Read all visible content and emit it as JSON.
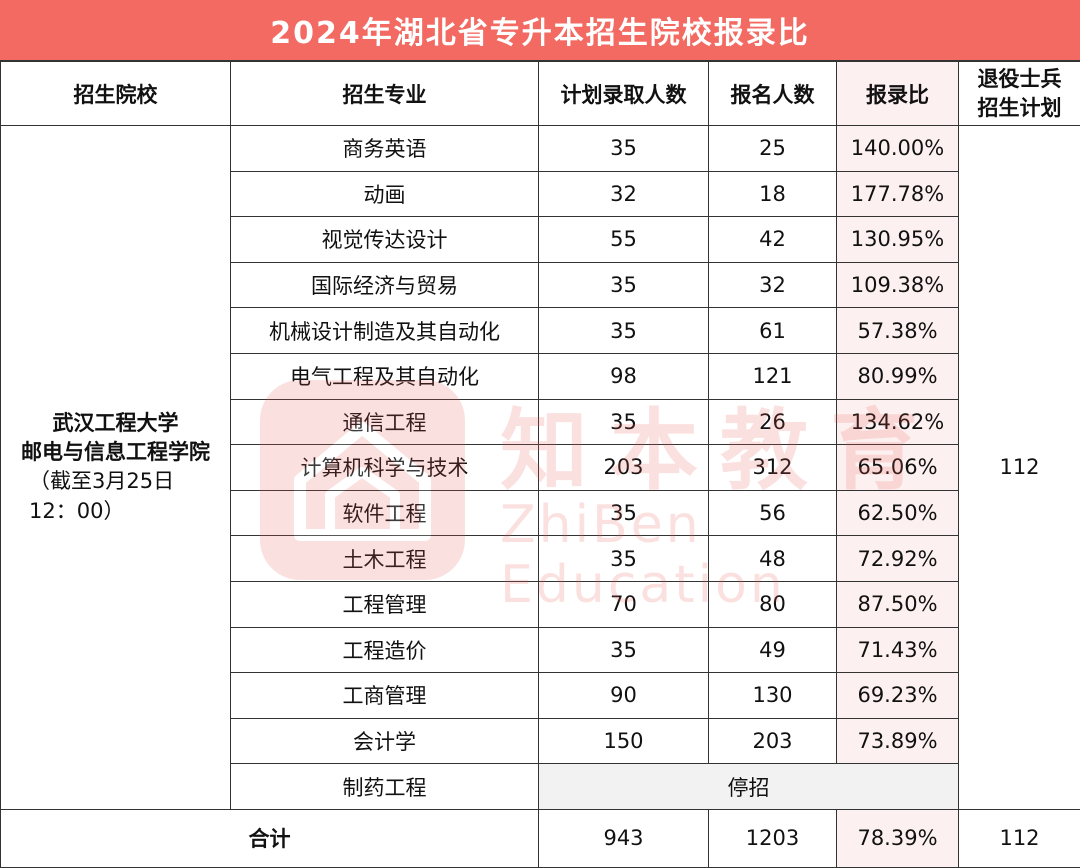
{
  "title": "2024年湖北省专升本招生院校报录比",
  "headers": {
    "school": "招生院校",
    "major": "招生专业",
    "plan": "计划录取人数",
    "applicants": "报名人数",
    "ratio": "报录比",
    "veteran_line1": "退役士兵",
    "veteran_line2": "招生计划"
  },
  "school": {
    "line1": "武汉工程大学",
    "line2": "邮电与信息工程学院",
    "line3": "（截至3月25日",
    "line4": "12：00）"
  },
  "veteran_plan": "112",
  "rows": [
    {
      "major": "商务英语",
      "plan": "35",
      "applicants": "25",
      "ratio": "140.00%"
    },
    {
      "major": "动画",
      "plan": "32",
      "applicants": "18",
      "ratio": "177.78%"
    },
    {
      "major": "视觉传达设计",
      "plan": "55",
      "applicants": "42",
      "ratio": "130.95%"
    },
    {
      "major": "国际经济与贸易",
      "plan": "35",
      "applicants": "32",
      "ratio": "109.38%"
    },
    {
      "major": "机械设计制造及其自动化",
      "plan": "35",
      "applicants": "61",
      "ratio": "57.38%"
    },
    {
      "major": "电气工程及其自动化",
      "plan": "98",
      "applicants": "121",
      "ratio": "80.99%"
    },
    {
      "major": "通信工程",
      "plan": "35",
      "applicants": "26",
      "ratio": "134.62%"
    },
    {
      "major": "计算机科学与技术",
      "plan": "203",
      "applicants": "312",
      "ratio": "65.06%"
    },
    {
      "major": "软件工程",
      "plan": "35",
      "applicants": "56",
      "ratio": "62.50%"
    },
    {
      "major": "土木工程",
      "plan": "35",
      "applicants": "48",
      "ratio": "72.92%"
    },
    {
      "major": "工程管理",
      "plan": "70",
      "applicants": "80",
      "ratio": "87.50%"
    },
    {
      "major": "工程造价",
      "plan": "35",
      "applicants": "49",
      "ratio": "71.43%"
    },
    {
      "major": "工商管理",
      "plan": "90",
      "applicants": "130",
      "ratio": "69.23%"
    },
    {
      "major": "会计学",
      "plan": "150",
      "applicants": "203",
      "ratio": "73.89%"
    }
  ],
  "stopped_row": {
    "major": "制药工程",
    "status": "停招"
  },
  "total": {
    "label": "合计",
    "plan": "943",
    "applicants": "1203",
    "ratio": "78.39%",
    "veteran": "112"
  },
  "watermark": {
    "cn": "知本教育",
    "en": "ZhiBen Education"
  },
  "colors": {
    "title_bg": "#f26a62",
    "ratio_bg": "#fdf0f0",
    "stopped_bg": "#f2f2f2"
  }
}
